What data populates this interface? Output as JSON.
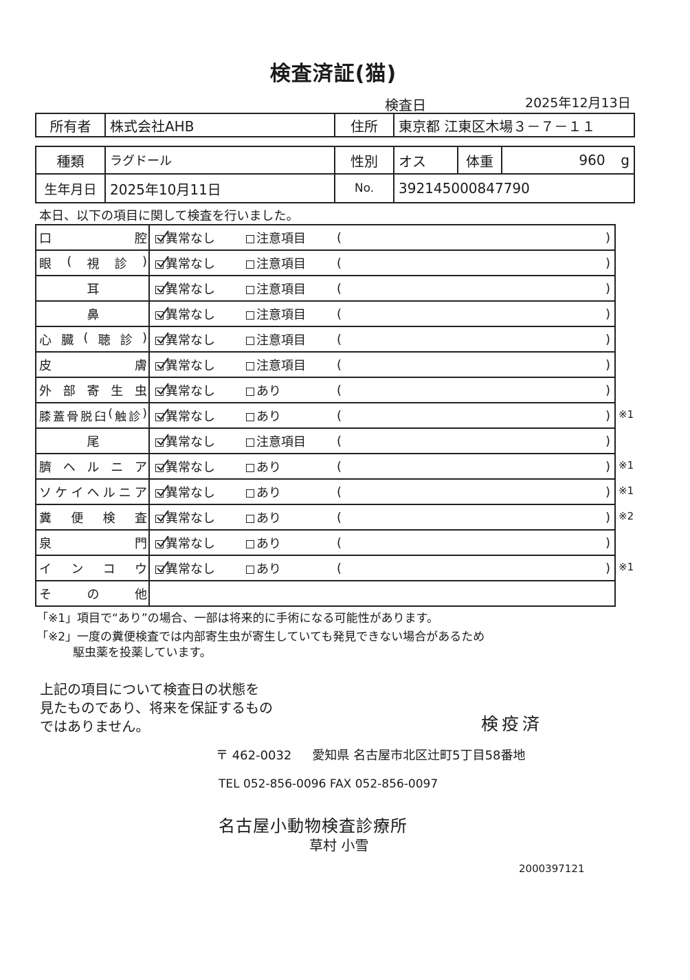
{
  "title": "検査済証(猫)",
  "exam_date": {
    "label": "検査日",
    "value": "2025年12月13日"
  },
  "owner": {
    "label": "所有者",
    "value": "株式会社AHB",
    "address_label": "住所",
    "address": "東京都 江東区木場３－７－１１"
  },
  "pet": {
    "breed_label": "種類",
    "breed": "ラグドール",
    "sex_label": "性別",
    "sex": "オス",
    "weight_label": "体重",
    "weight": "960",
    "weight_unit": "g",
    "dob_label": "生年月日",
    "dob": "2025年10月11日",
    "no_label": "No.",
    "no": "392145000847790"
  },
  "intro": "本日、以下の項目に関して検査を行いました。",
  "results_legend": {
    "normal": "異常なし",
    "caution": "注意項目",
    "present": "あり",
    "open_paren": "(",
    "close_paren": ")"
  },
  "items": [
    {
      "name": "口腔",
      "align": "justify",
      "alt": "caution",
      "note": ""
    },
    {
      "name": "眼(視診)",
      "align": "justify",
      "alt": "caution",
      "note": ""
    },
    {
      "name": "耳",
      "align": "center",
      "alt": "caution",
      "note": ""
    },
    {
      "name": "鼻",
      "align": "center",
      "alt": "caution",
      "note": ""
    },
    {
      "name": "心臓(聴診)",
      "align": "justify",
      "alt": "caution",
      "note": ""
    },
    {
      "name": "皮膚",
      "align": "justify",
      "alt": "caution",
      "note": ""
    },
    {
      "name": "外部寄生虫",
      "align": "justify",
      "alt": "present",
      "note": ""
    },
    {
      "name": "膝蓋骨脱臼(触診)",
      "align": "justify",
      "alt": "present",
      "note": "※1"
    },
    {
      "name": "尾",
      "align": "center",
      "alt": "caution",
      "note": ""
    },
    {
      "name": "臍ヘルニア",
      "align": "justify",
      "alt": "present",
      "note": "※1"
    },
    {
      "name": "ソケイヘルニア",
      "align": "justify",
      "alt": "present",
      "note": "※1"
    },
    {
      "name": "糞便検査",
      "align": "justify",
      "alt": "present",
      "note": "※2"
    },
    {
      "name": "泉門",
      "align": "justify",
      "alt": "present",
      "note": ""
    },
    {
      "name": "インコウ",
      "align": "justify",
      "alt": "present",
      "note": "※1"
    }
  ],
  "other_label": "その他",
  "footnotes": [
    "「※1」項目で“あり”の場合、一部は将来的に手術になる可能性があります。",
    "「※2」一度の糞便検査では内部寄生虫が寄生していても発見できない場合があるため",
    "駆虫薬を投薬しています。"
  ],
  "disclaimer": [
    "上記の項目について検査日の状態を",
    "見たものであり、将来を保証するもの",
    "ではありません。"
  ],
  "stamp": "検疫済",
  "clinic": {
    "postal": "〒 462-0032",
    "address": "愛知県 名古屋市北区辻町5丁目58番地",
    "tel": "TEL 052-856-0096 FAX 052-856-0097",
    "name": "名古屋小動物検査診療所",
    "vet": "草村 小雪"
  },
  "doc_code": "2000397121"
}
